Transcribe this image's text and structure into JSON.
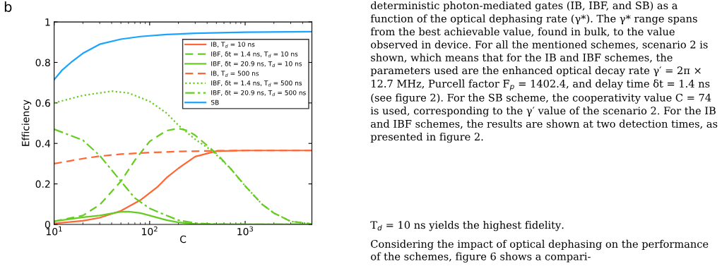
{
  "chart_data": {
    "type": "line",
    "xlabel": "C",
    "ylabel": "Efficiency",
    "log": "x",
    "xlim": [
      10,
      5000
    ],
    "xticks": [
      {
        "value": 10,
        "label": "10$^{1}$"
      },
      {
        "value": 100,
        "label": "10$^{2}$"
      },
      {
        "value": 1000,
        "label": "10$^{3}$"
      }
    ],
    "ylim": [
      0,
      1
    ],
    "yticks": [
      0,
      0.2,
      0.4,
      0.6,
      0.8,
      1
    ],
    "grid": false,
    "legend": "top right",
    "marker": "none",
    "annotations": [
      "b",
      "deterministic photon-mediated gates (IB, IBF, and SB) as a function of the optical dephasing rate (γ*). The γ* range spans from the best achievable value, found in bulk, to the value observed in device. For all the mentioned schemes, scenario 2 is shown, which means that for the IB and IBF schemes, the parameters used are the enhanced optical decay rate γ′ = 2π × 12.7 MHz, Purcell factor F$_{p}$ = 1402.4, and delay time δt = 1.4 ns (see figure 2). For the SB scheme, the cooperativity value C = 74 is used, corresponding to the γ′ value of the scenario 2. For the IB and IBF schemes, the results are shown at two detection times, as presented in figure 2.",
      "T$_{d}$ = 10 ns yields the highest fidelity.",
      "Considering the impact of optical dephasing on the performance of the schemes, figure 6 shows a compari-"
    ],
    "series": [
      {
        "name": "IB, T$_{d}$ = 10 ns",
        "color": "#ff6633",
        "line_style": "solid",
        "x": [
          10,
          20,
          30,
          50,
          80,
          120,
          150,
          200,
          300,
          500,
          1000,
          5000
        ],
        "values": [
          0.005,
          0.018,
          0.033,
          0.067,
          0.12,
          0.184,
          0.23,
          0.277,
          0.335,
          0.362,
          0.365,
          0.365
        ]
      },
      {
        "name": "IBF, δt = 1.4 ns, T$_{d}$ = 10 ns",
        "color": "#66cc22",
        "line_style": "dashed",
        "x": [
          10,
          20,
          30,
          50,
          70,
          100,
          150,
          200,
          250,
          300,
          400,
          500,
          700,
          1000,
          1500,
          2000,
          3000,
          5000
        ],
        "values": [
          0.015,
          0.044,
          0.097,
          0.213,
          0.317,
          0.41,
          0.463,
          0.474,
          0.463,
          0.44,
          0.39,
          0.35,
          0.277,
          0.19,
          0.1,
          0.056,
          0.015,
          0.002
        ]
      },
      {
        "name": "IBF, δt = 20.9 ns, T$_{d}$ = 10 ns",
        "color": "#66cc22",
        "line_style": "solid",
        "x": [
          10,
          20,
          30,
          50,
          60,
          80,
          100,
          150,
          200,
          300,
          500,
          5000
        ],
        "values": [
          0.015,
          0.035,
          0.044,
          0.062,
          0.063,
          0.056,
          0.044,
          0.021,
          0.01,
          0.002,
          0,
          0
        ]
      },
      {
        "name": "IB, T$_{d}$ = 500 ns",
        "color": "#ff6633",
        "line_style": "dashed",
        "x": [
          10,
          20,
          30,
          50,
          100,
          200,
          400,
          1000,
          5000
        ],
        "values": [
          0.3,
          0.325,
          0.337,
          0.347,
          0.355,
          0.36,
          0.363,
          0.365,
          0.365
        ]
      },
      {
        "name": "IBF, δt = 1.4 ns, T$_{d}$ = 500 ns",
        "color": "#66cc22",
        "line_style": "dotted",
        "x": [
          10,
          20,
          40,
          60,
          100,
          150,
          200,
          300,
          450,
          700,
          1000,
          1500,
          2000,
          3000,
          5000
        ],
        "values": [
          0.6,
          0.637,
          0.658,
          0.649,
          0.608,
          0.55,
          0.49,
          0.42,
          0.364,
          0.277,
          0.19,
          0.1,
          0.056,
          0.015,
          0.002
        ]
      },
      {
        "name": "IBF, δt = 20.9 ns, T$_{d}$ = 500 ns",
        "color": "#66cc22",
        "line_style": "dashdot",
        "x": [
          10,
          20,
          30,
          50,
          70,
          100,
          150,
          200,
          300,
          500,
          1000,
          5000
        ],
        "values": [
          0.47,
          0.416,
          0.34,
          0.213,
          0.13,
          0.079,
          0.044,
          0.021,
          0.006,
          0.001,
          0,
          0
        ]
      },
      {
        "name": "SB",
        "color": "#1aa3ff",
        "line_style": "solid",
        "x": [
          10,
          12,
          15,
          20,
          30,
          50,
          80,
          150,
          300,
          1000,
          5000
        ],
        "values": [
          0.715,
          0.76,
          0.8,
          0.845,
          0.89,
          0.915,
          0.928,
          0.938,
          0.944,
          0.949,
          0.952
        ]
      }
    ]
  }
}
